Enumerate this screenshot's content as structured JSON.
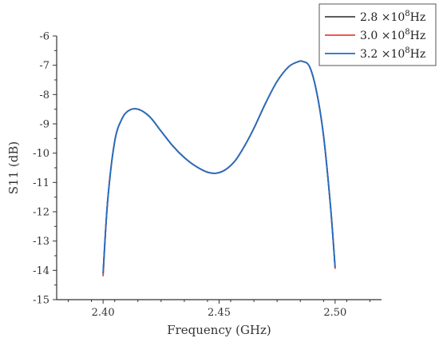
{
  "chart_data": {
    "type": "line",
    "title": "",
    "xlabel": "Frequency (GHz)",
    "ylabel": "S11 (dB)",
    "xlim": [
      2.38,
      2.52
    ],
    "ylim": [
      -15,
      -6
    ],
    "x_ticks": [
      "2.40",
      "2.45",
      "2.50"
    ],
    "y_ticks": [
      "-6",
      "-7",
      "-8",
      "-9",
      "-10",
      "-11",
      "-12",
      "-13",
      "-14",
      "-15"
    ],
    "grid": false,
    "legend_position": "top-right",
    "x": [
      2.4,
      2.402,
      2.405,
      2.408,
      2.411,
      2.415,
      2.42,
      2.425,
      2.43,
      2.435,
      2.44,
      2.445,
      2.449,
      2.453,
      2.457,
      2.461,
      2.465,
      2.47,
      2.475,
      2.48,
      2.484,
      2.486,
      2.489,
      2.492,
      2.495,
      2.498,
      2.5
    ],
    "series": [
      {
        "name_base": "2.8 ×10",
        "name_exp": "8",
        "name_unit": "Hz",
        "color": "#444444",
        "values": [
          -14.1,
          -11.6,
          -9.6,
          -8.85,
          -8.55,
          -8.5,
          -8.75,
          -9.25,
          -9.75,
          -10.15,
          -10.45,
          -10.65,
          -10.68,
          -10.55,
          -10.25,
          -9.75,
          -9.15,
          -8.3,
          -7.55,
          -7.05,
          -6.88,
          -6.87,
          -7.05,
          -7.9,
          -9.4,
          -11.8,
          -13.9
        ]
      },
      {
        "name_base": "3.0 ×10",
        "name_exp": "8",
        "name_unit": "Hz",
        "color": "#e8413c",
        "values": [
          -14.2,
          -11.6,
          -9.6,
          -8.85,
          -8.55,
          -8.5,
          -8.75,
          -9.25,
          -9.75,
          -10.15,
          -10.45,
          -10.65,
          -10.68,
          -10.55,
          -10.25,
          -9.75,
          -9.15,
          -8.3,
          -7.55,
          -7.05,
          -6.88,
          -6.87,
          -7.05,
          -7.9,
          -9.4,
          -11.8,
          -13.95
        ]
      },
      {
        "name_base": "3.2 ×10",
        "name_exp": "8",
        "name_unit": "Hz",
        "color": "#1f6fc5",
        "values": [
          -14.1,
          -11.6,
          -9.6,
          -8.85,
          -8.55,
          -8.5,
          -8.75,
          -9.25,
          -9.75,
          -10.15,
          -10.45,
          -10.65,
          -10.68,
          -10.55,
          -10.25,
          -9.75,
          -9.15,
          -8.3,
          -7.55,
          -7.05,
          -6.88,
          -6.87,
          -7.05,
          -7.9,
          -9.4,
          -11.8,
          -13.9
        ]
      }
    ]
  }
}
